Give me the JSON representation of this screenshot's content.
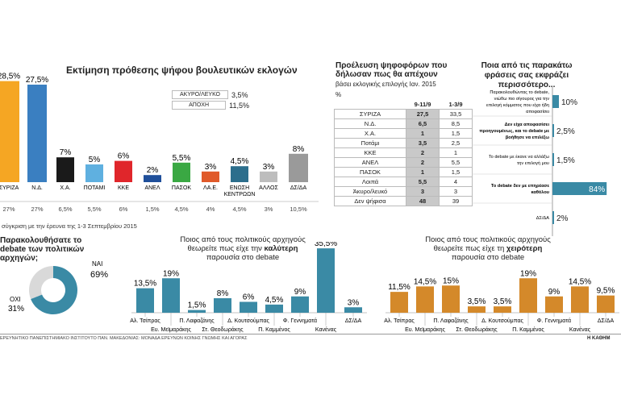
{
  "vote_chart": {
    "title": "Εκτίμηση πρόθεσης ψήφου βουλευτικών εκλογών",
    "categories": [
      "ΣΥΡΙΖΑ",
      "Ν.Δ.",
      "Χ.Α.",
      "ΠΟΤΑΜΙ",
      "ΚΚΕ",
      "ΑΝΕΛ",
      "ΠΑΣΟΚ",
      "ΛΑ.Ε.",
      "ΕΝΩΣΗ ΚΕΝΤΡΩΩΝ",
      "ΑΛΛΟΣ",
      "ΔΣ/ΔΑ"
    ],
    "values": [
      28.5,
      27.5,
      7,
      5,
      6,
      2,
      5.5,
      3,
      4.5,
      3,
      8
    ],
    "value_labels": [
      "28,5%",
      "27,5%",
      "7%",
      "5%",
      "6%",
      "2%",
      "5,5%",
      "3%",
      "4,5%",
      "3%",
      "8%"
    ],
    "colors": [
      "#f5a623",
      "#3a7fc1",
      "#1a1a1a",
      "#5fb0e0",
      "#e0262b",
      "#1f4f9a",
      "#3aa843",
      "#e05a2a",
      "#2c6e8c",
      "#bdbdbd",
      "#9a9a9a"
    ],
    "prev_values": [
      "27%",
      "27%",
      "6,5%",
      "5,5%",
      "6%",
      "1,5%",
      "4,5%",
      "4%",
      "4,5%",
      "3%",
      "10,5%"
    ],
    "comparison_note": "σύγκριση με την έρευνα της 1-3 Σεπτεμβρίου 2015",
    "extra_rows": [
      {
        "label": "ΑΚΥΡΟ/ΛΕΥΚΟ",
        "value": "3,5%"
      },
      {
        "label": "ΑΠΟΧΗ",
        "value": "11,5%"
      }
    ]
  },
  "origin_table": {
    "title": "Προέλευση ψηφοφόρων που δήλωσαν πως θα απέχουν",
    "subtitle": "βάσει εκλογικής επιλογής Ιαν. 2015",
    "unit": "%",
    "headers": [
      "9-11/9",
      "1-3/9"
    ],
    "rows": [
      {
        "label": "ΣΥΡΙΖΑ",
        "a": "27,5",
        "b": "33,5"
      },
      {
        "label": "Ν.Δ.",
        "a": "6,5",
        "b": "8,5"
      },
      {
        "label": "Χ.Α.",
        "a": "1",
        "b": "1,5"
      },
      {
        "label": "Ποτάμι",
        "a": "3,5",
        "b": "2,5"
      },
      {
        "label": "ΚΚΕ",
        "a": "2",
        "b": "1"
      },
      {
        "label": "ΑΝΕΛ",
        "a": "2",
        "b": "5,5"
      },
      {
        "label": "ΠΑΣΟΚ",
        "a": "1",
        "b": "1,5"
      },
      {
        "label": "Λοιπά",
        "a": "5,5",
        "b": "4"
      },
      {
        "label": "Άκυρο/λευκό",
        "a": "3",
        "b": "3"
      },
      {
        "label": "Δεν ψήφισα",
        "a": "48",
        "b": "39"
      }
    ]
  },
  "phrase_chart": {
    "title": "Ποια από τις παρακάτω φράσεις σας εκφράζει περισσότερο...",
    "items": [
      {
        "text": "Παρακολουθώντας το debate, νιώθω πιο σίγουρος για την επιλογή κόμματος που είχα ήδη αποφασίσει",
        "value": 10,
        "label": "10%"
      },
      {
        "text": "Δεν είχα αποφασίσει προηγουμένως, και το debate με βοήθησε να επιλέξω",
        "value": 2.5,
        "label": "2,5%"
      },
      {
        "text": "Το debate με έκανε να αλλάξω την επιλογή μου",
        "value": 1.5,
        "label": "1,5%"
      },
      {
        "text": "Το debate δεν με επηρέασε καθόλου",
        "value": 84,
        "label": "84%"
      },
      {
        "text": "ΔΣ/ΔΑ",
        "value": 2,
        "label": "2%"
      }
    ],
    "color": "#3a8aa5"
  },
  "debate_donut": {
    "title": "Παρακολουθήσατε το debate των πολιτικών αρχηγών;",
    "yes_label": "ΝΑΙ",
    "yes_value": "69%",
    "no_label": "ΟΧΙ",
    "no_value": "31%",
    "yes": 69,
    "no": 31,
    "yes_color": "#3a8aa5",
    "no_color": "#d9d9d9"
  },
  "best_chart": {
    "title_1": "Ποιος από τους πολιτικούς αρχηγούς",
    "title_2a": "θεωρείτε πως είχε την ",
    "title_2b": "καλύτερη",
    "title_3": "παρουσία στο debate",
    "categories": [
      "Αλ. Τσίπρας",
      "Ευ. Μεϊμαράκης",
      "Π. Λαφαζάνης",
      "Στ. Θεοδωράκης",
      "Δ. Κουτσούμπας",
      "Π. Καμμένος",
      "Φ. Γεννηματά",
      "Κανένας",
      "ΔΣ/ΔΑ"
    ],
    "values": [
      13.5,
      19,
      1.5,
      8,
      6,
      4.5,
      9,
      35.5,
      3
    ],
    "labels": [
      "13,5%",
      "19%",
      "1,5%",
      "8%",
      "6%",
      "4,5%",
      "9%",
      "35,5%",
      "3%"
    ],
    "color": "#3a8aa5"
  },
  "worst_chart": {
    "title_1": "Ποιος από τους πολιτικούς αρχηγούς",
    "title_2a": "θεωρείτε πως είχε τη ",
    "title_2b": "χειρότερη",
    "title_3": "παρουσία στο debate",
    "categories": [
      "Αλ. Τσίπρας",
      "Ευ. Μεϊμαράκης",
      "Π. Λαφαζάνης",
      "Στ. Θεοδωράκης",
      "Δ. Κουτσούμπας",
      "Π. Καμμένος",
      "Φ. Γεννηματά",
      "Κανένας",
      "ΔΣ/ΔΑ"
    ],
    "values": [
      11.5,
      14.5,
      15,
      3.5,
      3.5,
      19,
      9,
      14.5,
      9.5
    ],
    "labels": [
      "11,5%",
      "14,5%",
      "15%",
      "3,5%",
      "3,5%",
      "19%",
      "9%",
      "14,5%",
      "9,5%"
    ],
    "color": "#d4892a"
  },
  "footer": {
    "source": "ΕΡΕΥΝΗΤΙΚΟ ΠΑΝΕΠΙΣΤΗΜΙΑΚΟ ΙΝΣΤΙΤΟΥΤΟ ΠΑΝ. ΜΑΚΕΔΟΝΙΑΣ: ΜΟΝΑΔΑ ΕΡΕΥΝΩΝ ΚΟΙΝΗΣ ΓΝΩΜΗΣ ΚΑΙ ΑΓΟΡΑΣ",
    "brand": "Η ΚΑΘΗΜ"
  },
  "chart_data": [
    {
      "type": "bar",
      "title": "Εκτίμηση πρόθεσης ψήφου βουλευτικών εκλογών",
      "categories": [
        "ΣΥΡΙΖΑ",
        "Ν.Δ.",
        "Χ.Α.",
        "ΠΟΤΑΜΙ",
        "ΚΚΕ",
        "ΑΝΕΛ",
        "ΠΑΣΟΚ",
        "ΛΑ.Ε.",
        "ΕΝΩΣΗ ΚΕΝΤΡΩΩΝ",
        "ΑΛΛΟΣ",
        "ΔΣ/ΔΑ"
      ],
      "series": [
        {
          "values": [
            28.5,
            27.5,
            7,
            5,
            6,
            2,
            5.5,
            3,
            4.5,
            3,
            8
          ]
        },
        {
          "values": [
            27,
            27,
            6.5,
            5.5,
            6,
            1.5,
            4.5,
            4,
            4.5,
            3,
            10.5
          ]
        }
      ]
    },
    {
      "type": "table",
      "title": "Προέλευση ψηφοφόρων που δήλωσαν πως θα απέχουν",
      "columns": [
        "9-11/9",
        "1-3/9"
      ]
    },
    {
      "type": "bar",
      "title": "Ποια από τις παρακάτω φράσεις σας εκφράζει περισσότερο...",
      "values": [
        10,
        2.5,
        1.5,
        84,
        2
      ]
    },
    {
      "type": "pie",
      "title": "Παρακολουθήσατε το debate των πολιτικών αρχηγών;",
      "categories": [
        "ΝΑΙ",
        "ΟΧΙ"
      ],
      "values": [
        69,
        31
      ]
    },
    {
      "type": "bar",
      "title": "καλύτερη παρουσία στο debate",
      "categories": [
        "Αλ. Τσίπρας",
        "Ευ. Μεϊμαράκης",
        "Π. Λαφαζάνης",
        "Στ. Θεοδωράκης",
        "Δ. Κουτσούμπας",
        "Π. Καμμένος",
        "Φ. Γεννηματά",
        "Κανένας",
        "ΔΣ/ΔΑ"
      ],
      "values": [
        13.5,
        19,
        1.5,
        8,
        6,
        4.5,
        9,
        35.5,
        3
      ]
    },
    {
      "type": "bar",
      "title": "χειρότερη παρουσία στο debate",
      "categories": [
        "Αλ. Τσίπρας",
        "Ευ. Μεϊμαράκης",
        "Π. Λαφαζάνης",
        "Στ. Θεοδωράκης",
        "Δ. Κουτσούμπας",
        "Π. Καμμένος",
        "Φ. Γεννηματά",
        "Κανένας",
        "ΔΣ/ΔΑ"
      ],
      "values": [
        11.5,
        14.5,
        15,
        3.5,
        3.5,
        19,
        9,
        14.5,
        9.5
      ]
    }
  ]
}
